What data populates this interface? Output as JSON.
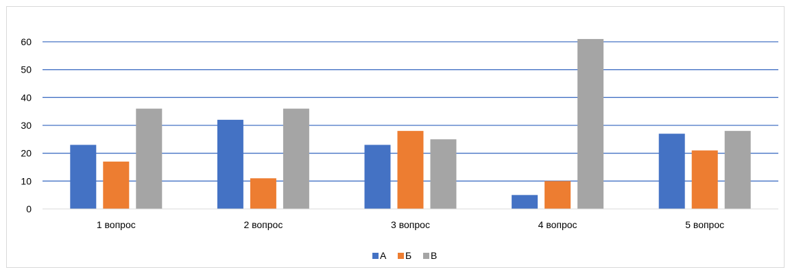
{
  "chart_data": {
    "type": "bar",
    "categories": [
      "1 вопрос",
      "2 вопрос",
      "3 вопрос",
      "4 вопрос",
      "5 вопрос"
    ],
    "series": [
      {
        "name": "А",
        "color": "#4472c4",
        "values": [
          23,
          32,
          23,
          5,
          27
        ]
      },
      {
        "name": "Б",
        "color": "#ed7d31",
        "values": [
          17,
          11,
          28,
          10,
          21
        ]
      },
      {
        "name": "В",
        "color": "#a5a5a5",
        "values": [
          36,
          36,
          25,
          61,
          28
        ]
      }
    ],
    "y_ticks": [
      "0",
      "10",
      "20",
      "30",
      "40",
      "50",
      "60"
    ],
    "ylim": [
      0,
      60
    ],
    "grid": true,
    "grid_color": "#4472c4",
    "legend_position": "bottom"
  }
}
